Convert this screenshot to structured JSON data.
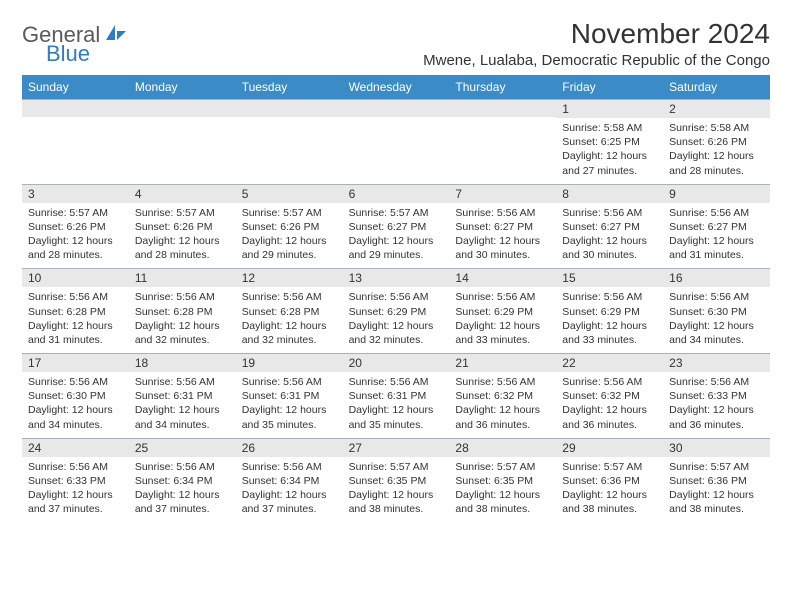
{
  "logo": {
    "text_general": "General",
    "text_blue": "Blue",
    "icon_color": "#2f7cc0"
  },
  "title": "November 2024",
  "location": "Mwene, Lualaba, Democratic Republic of the Congo",
  "colors": {
    "header_bg": "#3b8bc6",
    "header_text": "#ffffff",
    "daynum_bg": "#e8e8e8",
    "cell_border": "#a8b2bd",
    "body_text": "#333333"
  },
  "weekdays": [
    "Sunday",
    "Monday",
    "Tuesday",
    "Wednesday",
    "Thursday",
    "Friday",
    "Saturday"
  ],
  "cells": [
    {
      "empty": true
    },
    {
      "empty": true
    },
    {
      "empty": true
    },
    {
      "empty": true
    },
    {
      "empty": true
    },
    {
      "day": "1",
      "sunrise": "Sunrise: 5:58 AM",
      "sunset": "Sunset: 6:25 PM",
      "daylight1": "Daylight: 12 hours",
      "daylight2": "and 27 minutes."
    },
    {
      "day": "2",
      "sunrise": "Sunrise: 5:58 AM",
      "sunset": "Sunset: 6:26 PM",
      "daylight1": "Daylight: 12 hours",
      "daylight2": "and 28 minutes."
    },
    {
      "day": "3",
      "sunrise": "Sunrise: 5:57 AM",
      "sunset": "Sunset: 6:26 PM",
      "daylight1": "Daylight: 12 hours",
      "daylight2": "and 28 minutes."
    },
    {
      "day": "4",
      "sunrise": "Sunrise: 5:57 AM",
      "sunset": "Sunset: 6:26 PM",
      "daylight1": "Daylight: 12 hours",
      "daylight2": "and 28 minutes."
    },
    {
      "day": "5",
      "sunrise": "Sunrise: 5:57 AM",
      "sunset": "Sunset: 6:26 PM",
      "daylight1": "Daylight: 12 hours",
      "daylight2": "and 29 minutes."
    },
    {
      "day": "6",
      "sunrise": "Sunrise: 5:57 AM",
      "sunset": "Sunset: 6:27 PM",
      "daylight1": "Daylight: 12 hours",
      "daylight2": "and 29 minutes."
    },
    {
      "day": "7",
      "sunrise": "Sunrise: 5:56 AM",
      "sunset": "Sunset: 6:27 PM",
      "daylight1": "Daylight: 12 hours",
      "daylight2": "and 30 minutes."
    },
    {
      "day": "8",
      "sunrise": "Sunrise: 5:56 AM",
      "sunset": "Sunset: 6:27 PM",
      "daylight1": "Daylight: 12 hours",
      "daylight2": "and 30 minutes."
    },
    {
      "day": "9",
      "sunrise": "Sunrise: 5:56 AM",
      "sunset": "Sunset: 6:27 PM",
      "daylight1": "Daylight: 12 hours",
      "daylight2": "and 31 minutes."
    },
    {
      "day": "10",
      "sunrise": "Sunrise: 5:56 AM",
      "sunset": "Sunset: 6:28 PM",
      "daylight1": "Daylight: 12 hours",
      "daylight2": "and 31 minutes."
    },
    {
      "day": "11",
      "sunrise": "Sunrise: 5:56 AM",
      "sunset": "Sunset: 6:28 PM",
      "daylight1": "Daylight: 12 hours",
      "daylight2": "and 32 minutes."
    },
    {
      "day": "12",
      "sunrise": "Sunrise: 5:56 AM",
      "sunset": "Sunset: 6:28 PM",
      "daylight1": "Daylight: 12 hours",
      "daylight2": "and 32 minutes."
    },
    {
      "day": "13",
      "sunrise": "Sunrise: 5:56 AM",
      "sunset": "Sunset: 6:29 PM",
      "daylight1": "Daylight: 12 hours",
      "daylight2": "and 32 minutes."
    },
    {
      "day": "14",
      "sunrise": "Sunrise: 5:56 AM",
      "sunset": "Sunset: 6:29 PM",
      "daylight1": "Daylight: 12 hours",
      "daylight2": "and 33 minutes."
    },
    {
      "day": "15",
      "sunrise": "Sunrise: 5:56 AM",
      "sunset": "Sunset: 6:29 PM",
      "daylight1": "Daylight: 12 hours",
      "daylight2": "and 33 minutes."
    },
    {
      "day": "16",
      "sunrise": "Sunrise: 5:56 AM",
      "sunset": "Sunset: 6:30 PM",
      "daylight1": "Daylight: 12 hours",
      "daylight2": "and 34 minutes."
    },
    {
      "day": "17",
      "sunrise": "Sunrise: 5:56 AM",
      "sunset": "Sunset: 6:30 PM",
      "daylight1": "Daylight: 12 hours",
      "daylight2": "and 34 minutes."
    },
    {
      "day": "18",
      "sunrise": "Sunrise: 5:56 AM",
      "sunset": "Sunset: 6:31 PM",
      "daylight1": "Daylight: 12 hours",
      "daylight2": "and 34 minutes."
    },
    {
      "day": "19",
      "sunrise": "Sunrise: 5:56 AM",
      "sunset": "Sunset: 6:31 PM",
      "daylight1": "Daylight: 12 hours",
      "daylight2": "and 35 minutes."
    },
    {
      "day": "20",
      "sunrise": "Sunrise: 5:56 AM",
      "sunset": "Sunset: 6:31 PM",
      "daylight1": "Daylight: 12 hours",
      "daylight2": "and 35 minutes."
    },
    {
      "day": "21",
      "sunrise": "Sunrise: 5:56 AM",
      "sunset": "Sunset: 6:32 PM",
      "daylight1": "Daylight: 12 hours",
      "daylight2": "and 36 minutes."
    },
    {
      "day": "22",
      "sunrise": "Sunrise: 5:56 AM",
      "sunset": "Sunset: 6:32 PM",
      "daylight1": "Daylight: 12 hours",
      "daylight2": "and 36 minutes."
    },
    {
      "day": "23",
      "sunrise": "Sunrise: 5:56 AM",
      "sunset": "Sunset: 6:33 PM",
      "daylight1": "Daylight: 12 hours",
      "daylight2": "and 36 minutes."
    },
    {
      "day": "24",
      "sunrise": "Sunrise: 5:56 AM",
      "sunset": "Sunset: 6:33 PM",
      "daylight1": "Daylight: 12 hours",
      "daylight2": "and 37 minutes."
    },
    {
      "day": "25",
      "sunrise": "Sunrise: 5:56 AM",
      "sunset": "Sunset: 6:34 PM",
      "daylight1": "Daylight: 12 hours",
      "daylight2": "and 37 minutes."
    },
    {
      "day": "26",
      "sunrise": "Sunrise: 5:56 AM",
      "sunset": "Sunset: 6:34 PM",
      "daylight1": "Daylight: 12 hours",
      "daylight2": "and 37 minutes."
    },
    {
      "day": "27",
      "sunrise": "Sunrise: 5:57 AM",
      "sunset": "Sunset: 6:35 PM",
      "daylight1": "Daylight: 12 hours",
      "daylight2": "and 38 minutes."
    },
    {
      "day": "28",
      "sunrise": "Sunrise: 5:57 AM",
      "sunset": "Sunset: 6:35 PM",
      "daylight1": "Daylight: 12 hours",
      "daylight2": "and 38 minutes."
    },
    {
      "day": "29",
      "sunrise": "Sunrise: 5:57 AM",
      "sunset": "Sunset: 6:36 PM",
      "daylight1": "Daylight: 12 hours",
      "daylight2": "and 38 minutes."
    },
    {
      "day": "30",
      "sunrise": "Sunrise: 5:57 AM",
      "sunset": "Sunset: 6:36 PM",
      "daylight1": "Daylight: 12 hours",
      "daylight2": "and 38 minutes."
    }
  ]
}
